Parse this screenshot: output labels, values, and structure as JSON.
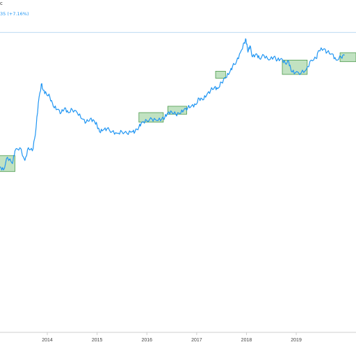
{
  "header": {
    "name_fragment": "c",
    "change_fragment": "35 (+7.16%)"
  },
  "colors": {
    "line": "#2196f3",
    "zone_fill": "#9fd39f",
    "zone_stroke": "#4c9a4c",
    "ref_line": "#bcd9f3",
    "axis": "#cfcfcf"
  },
  "chart_data": {
    "type": "line",
    "title": "",
    "xlabel": "",
    "ylabel": "",
    "x_ticks": [
      "2014",
      "2015",
      "2016",
      "2017",
      "2018",
      "2019"
    ],
    "x_range": [
      2013.05,
      2020.2
    ],
    "y_range": [
      0,
      100
    ],
    "y_ticks_shown": false,
    "grid": false,
    "legend": "none",
    "series": [
      {
        "values": [
          [
            2013.05,
            52
          ],
          [
            2013.12,
            51
          ],
          [
            2013.2,
            55
          ],
          [
            2013.3,
            53
          ],
          [
            2013.35,
            57
          ],
          [
            2013.45,
            58
          ],
          [
            2013.55,
            54
          ],
          [
            2013.62,
            58
          ],
          [
            2013.7,
            57
          ],
          [
            2013.76,
            62
          ],
          [
            2013.82,
            72
          ],
          [
            2013.88,
            78
          ],
          [
            2013.92,
            76
          ],
          [
            2013.98,
            75
          ],
          [
            2014.05,
            74
          ],
          [
            2014.12,
            71
          ],
          [
            2014.2,
            70
          ],
          [
            2014.28,
            69
          ],
          [
            2014.35,
            70.5
          ],
          [
            2014.42,
            69
          ],
          [
            2014.5,
            70
          ],
          [
            2014.6,
            69
          ],
          [
            2014.7,
            67
          ],
          [
            2014.78,
            66
          ],
          [
            2014.86,
            67
          ],
          [
            2014.94,
            66.5
          ],
          [
            2015.0,
            65
          ],
          [
            2015.05,
            63
          ],
          [
            2015.12,
            63.5
          ],
          [
            2015.2,
            64
          ],
          [
            2015.3,
            63
          ],
          [
            2015.4,
            62.5
          ],
          [
            2015.5,
            63
          ],
          [
            2015.6,
            62.5
          ],
          [
            2015.7,
            63
          ],
          [
            2015.76,
            63
          ],
          [
            2015.84,
            64.5
          ],
          [
            2015.9,
            66
          ],
          [
            2016.0,
            66.5
          ],
          [
            2016.1,
            67
          ],
          [
            2016.2,
            66.5
          ],
          [
            2016.3,
            67
          ],
          [
            2016.36,
            67.5
          ],
          [
            2016.42,
            69
          ],
          [
            2016.5,
            69.2
          ],
          [
            2016.58,
            68.5
          ],
          [
            2016.66,
            68.7
          ],
          [
            2016.74,
            69.8
          ],
          [
            2016.82,
            70.5
          ],
          [
            2016.9,
            71.2
          ],
          [
            2016.98,
            71.5
          ],
          [
            2017.05,
            73.5
          ],
          [
            2017.12,
            73
          ],
          [
            2017.2,
            74.5
          ],
          [
            2017.28,
            76
          ],
          [
            2017.36,
            77
          ],
          [
            2017.42,
            76.5
          ],
          [
            2017.5,
            78.5
          ],
          [
            2017.58,
            80
          ],
          [
            2017.66,
            81.5
          ],
          [
            2017.72,
            83.5
          ],
          [
            2017.8,
            85
          ],
          [
            2017.88,
            88
          ],
          [
            2017.96,
            91
          ],
          [
            2017.99,
            92
          ],
          [
            2018.03,
            88
          ],
          [
            2018.07,
            90
          ],
          [
            2018.12,
            86.5
          ],
          [
            2018.2,
            87.5
          ],
          [
            2018.26,
            86
          ],
          [
            2018.35,
            87
          ],
          [
            2018.45,
            85.5
          ],
          [
            2018.55,
            86.5
          ],
          [
            2018.62,
            85.5
          ],
          [
            2018.7,
            86
          ],
          [
            2018.78,
            84.5
          ],
          [
            2018.85,
            85
          ],
          [
            2018.9,
            82
          ],
          [
            2018.98,
            81.5
          ],
          [
            2019.1,
            81.5
          ],
          [
            2019.2,
            82.5
          ],
          [
            2019.3,
            85.5
          ],
          [
            2019.4,
            86
          ],
          [
            2019.45,
            88.5
          ],
          [
            2019.55,
            89
          ],
          [
            2019.62,
            88
          ],
          [
            2019.72,
            87.5
          ],
          [
            2019.8,
            85.5
          ],
          [
            2019.9,
            86.5
          ],
          [
            2019.97,
            87
          ]
        ]
      }
    ],
    "reference_line": 94.2,
    "highlight_zones": [
      {
        "x": [
          2012.98,
          2013.35
        ],
        "y": [
          50.5,
          55.5
        ]
      },
      {
        "x": [
          2015.84,
          2016.33
        ],
        "y": [
          66,
          69
        ]
      },
      {
        "x": [
          2016.42,
          2016.8
        ],
        "y": [
          68.5,
          71
        ]
      },
      {
        "x": [
          2017.38,
          2017.58
        ],
        "y": [
          79.8,
          82
        ]
      },
      {
        "x": [
          2018.72,
          2019.22
        ],
        "y": [
          81,
          85.5
        ]
      },
      {
        "x": [
          2019.88,
          2020.2
        ],
        "y": [
          85,
          87.8
        ]
      }
    ]
  }
}
